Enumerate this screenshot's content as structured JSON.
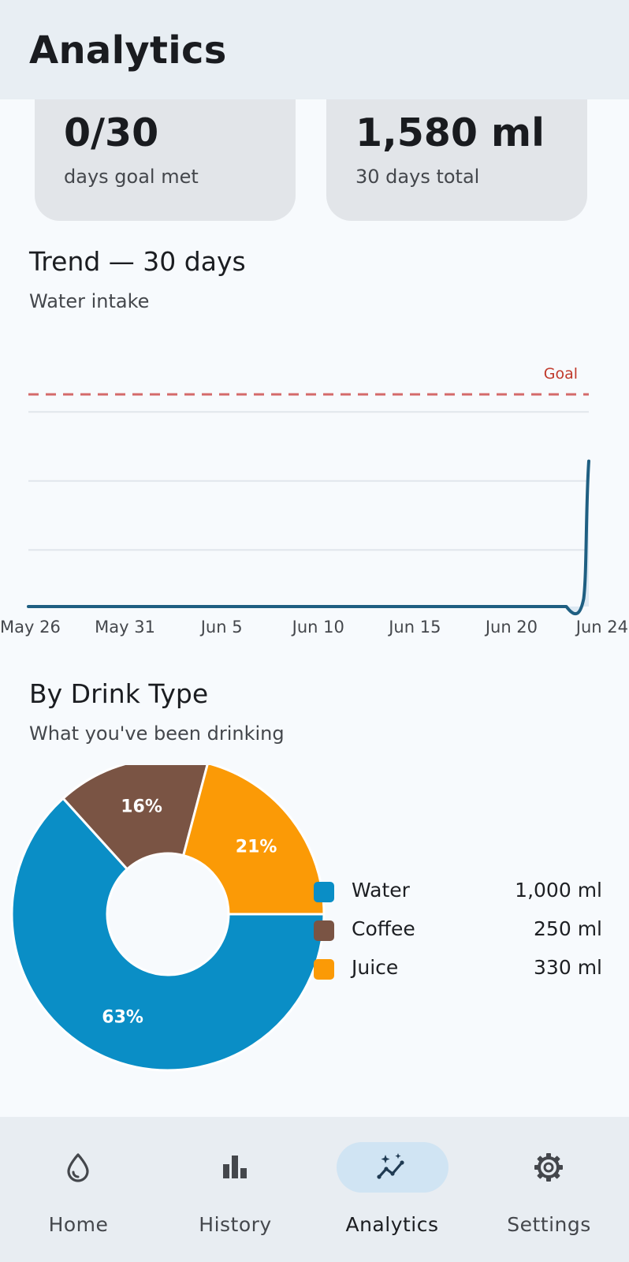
{
  "header": {
    "title": "Analytics"
  },
  "stats": [
    {
      "value": "0/30",
      "label": "days goal met"
    },
    {
      "value": "1,580 ml",
      "label": "30 days total"
    }
  ],
  "trend": {
    "title": "Trend — 30 days",
    "subtitle": "Water intake",
    "goal_label": "Goal",
    "x_ticks": [
      "May 26",
      "May 31",
      "Jun 5",
      "Jun 10",
      "Jun 15",
      "Jun 20",
      "Jun 24"
    ]
  },
  "drink_type": {
    "title": "By Drink Type",
    "subtitle": "What you've been drinking",
    "legend": [
      {
        "name": "Water",
        "value": "1,000 ml",
        "color": "#0a8ec6"
      },
      {
        "name": "Coffee",
        "value": "250 ml",
        "color": "#7a5444"
      },
      {
        "name": "Juice",
        "value": "330 ml",
        "color": "#fb9a06"
      }
    ]
  },
  "nav": [
    {
      "label": "Home",
      "icon": "water-drop-icon",
      "active": false
    },
    {
      "label": "History",
      "icon": "bar-chart-icon",
      "active": false
    },
    {
      "label": "Analytics",
      "icon": "analytics-sparkle-icon",
      "active": true
    },
    {
      "label": "Settings",
      "icon": "gear-icon",
      "active": false
    }
  ],
  "chart_data": [
    {
      "type": "line",
      "title": "Trend — 30 days",
      "subtitle": "Water intake",
      "x": [
        "May 26",
        "May 27",
        "May 28",
        "May 29",
        "May 30",
        "May 31",
        "Jun 1",
        "Jun 2",
        "Jun 3",
        "Jun 4",
        "Jun 5",
        "Jun 6",
        "Jun 7",
        "Jun 8",
        "Jun 9",
        "Jun 10",
        "Jun 11",
        "Jun 12",
        "Jun 13",
        "Jun 14",
        "Jun 15",
        "Jun 16",
        "Jun 17",
        "Jun 18",
        "Jun 19",
        "Jun 20",
        "Jun 21",
        "Jun 22",
        "Jun 23",
        "Jun 24"
      ],
      "series": [
        {
          "values": [
            0,
            0,
            0,
            0,
            0,
            0,
            0,
            0,
            0,
            0,
            0,
            0,
            0,
            0,
            0,
            0,
            0,
            0,
            0,
            0,
            0,
            0,
            0,
            0,
            0,
            0,
            0,
            0,
            0,
            1580
          ]
        }
      ],
      "annotations": [
        {
          "type": "goal-line",
          "label": "Goal",
          "value": 2100,
          "color": "#d9534f"
        }
      ],
      "ylim": [
        0,
        2100
      ],
      "grid": true,
      "x_ticks": [
        "May 26",
        "May 31",
        "Jun 5",
        "Jun 10",
        "Jun 15",
        "Jun 20",
        "Jun 24"
      ],
      "line_color": "#1f5f82"
    },
    {
      "type": "pie",
      "title": "By Drink Type",
      "subtitle": "What you've been drinking",
      "donut": true,
      "slices": [
        {
          "label": "Water",
          "value": 1000,
          "percent_label": "63%",
          "color": "#0a8ec6"
        },
        {
          "label": "Coffee",
          "value": 250,
          "percent_label": "16%",
          "color": "#7a5444"
        },
        {
          "label": "Juice",
          "value": 330,
          "percent_label": "21%",
          "color": "#fb9a06"
        }
      ],
      "legend_position": "right"
    }
  ]
}
